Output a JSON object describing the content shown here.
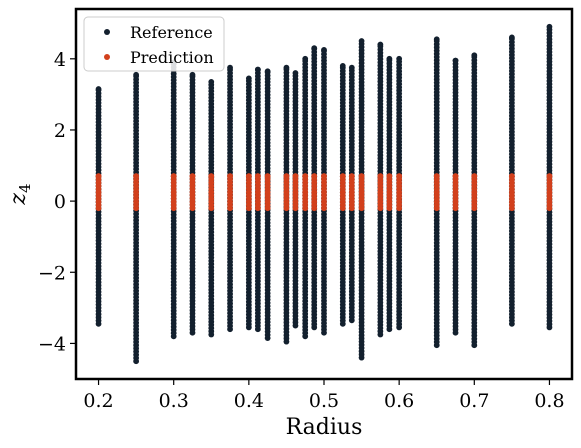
{
  "chart_data": {
    "type": "scatter",
    "title": "",
    "xlabel": "Radius",
    "ylabel_main": "z",
    "ylabel_sub": "4",
    "xlim": [
      0.17,
      0.83
    ],
    "ylim": [
      -5.0,
      5.4
    ],
    "x_ticks": [
      {
        "value": 0.2,
        "label": "0.2"
      },
      {
        "value": 0.3,
        "label": "0.3"
      },
      {
        "value": 0.4,
        "label": "0.4"
      },
      {
        "value": 0.5,
        "label": "0.5"
      },
      {
        "value": 0.6,
        "label": "0.6"
      },
      {
        "value": 0.7,
        "label": "0.7"
      },
      {
        "value": 0.8,
        "label": "0.8"
      }
    ],
    "y_ticks": [
      {
        "value": 4,
        "label": "4"
      },
      {
        "value": 2,
        "label": "2"
      },
      {
        "value": 0,
        "label": "0"
      },
      {
        "value": -2,
        "label": "−2"
      },
      {
        "value": -4,
        "label": "−4"
      }
    ],
    "grid": false,
    "legend_position": "top-left",
    "series": [
      {
        "name": "Reference",
        "color": "#13202e",
        "points": [
          {
            "x": 0.2,
            "ymin": -3.45,
            "ymax": 3.15
          },
          {
            "x": 0.25,
            "ymin": -4.5,
            "ymax": 3.55
          },
          {
            "x": 0.3,
            "ymin": -3.8,
            "ymax": 3.9
          },
          {
            "x": 0.325,
            "ymin": -3.7,
            "ymax": 3.55
          },
          {
            "x": 0.35,
            "ymin": -3.75,
            "ymax": 3.35
          },
          {
            "x": 0.375,
            "ymin": -3.6,
            "ymax": 3.75
          },
          {
            "x": 0.4,
            "ymin": -3.55,
            "ymax": 3.45
          },
          {
            "x": 0.412,
            "ymin": -3.6,
            "ymax": 3.7
          },
          {
            "x": 0.425,
            "ymin": -3.85,
            "ymax": 3.65
          },
          {
            "x": 0.45,
            "ymin": -3.95,
            "ymax": 3.75
          },
          {
            "x": 0.462,
            "ymin": -3.5,
            "ymax": 3.6
          },
          {
            "x": 0.475,
            "ymin": -3.8,
            "ymax": 4.0
          },
          {
            "x": 0.487,
            "ymin": -3.55,
            "ymax": 4.3
          },
          {
            "x": 0.5,
            "ymin": -3.7,
            "ymax": 4.25
          },
          {
            "x": 0.525,
            "ymin": -3.45,
            "ymax": 3.8
          },
          {
            "x": 0.537,
            "ymin": -3.35,
            "ymax": 3.75
          },
          {
            "x": 0.55,
            "ymin": -4.4,
            "ymax": 4.5
          },
          {
            "x": 0.575,
            "ymin": -3.75,
            "ymax": 4.4
          },
          {
            "x": 0.587,
            "ymin": -3.6,
            "ymax": 4.0
          },
          {
            "x": 0.6,
            "ymin": -3.55,
            "ymax": 4.0
          },
          {
            "x": 0.65,
            "ymin": -4.05,
            "ymax": 4.55
          },
          {
            "x": 0.675,
            "ymin": -3.7,
            "ymax": 3.95
          },
          {
            "x": 0.7,
            "ymin": -4.05,
            "ymax": 4.1
          },
          {
            "x": 0.75,
            "ymin": -3.45,
            "ymax": 4.6
          },
          {
            "x": 0.8,
            "ymin": -3.55,
            "ymax": 4.9
          }
        ]
      },
      {
        "name": "Prediction",
        "color": "#d2401c",
        "points": [
          {
            "x": 0.2,
            "ymin": -0.2,
            "ymax": 0.7
          },
          {
            "x": 0.25,
            "ymin": -0.2,
            "ymax": 0.7
          },
          {
            "x": 0.3,
            "ymin": -0.2,
            "ymax": 0.7
          },
          {
            "x": 0.325,
            "ymin": -0.2,
            "ymax": 0.7
          },
          {
            "x": 0.35,
            "ymin": -0.2,
            "ymax": 0.7
          },
          {
            "x": 0.375,
            "ymin": -0.2,
            "ymax": 0.7
          },
          {
            "x": 0.4,
            "ymin": -0.2,
            "ymax": 0.7
          },
          {
            "x": 0.412,
            "ymin": -0.2,
            "ymax": 0.7
          },
          {
            "x": 0.425,
            "ymin": -0.2,
            "ymax": 0.7
          },
          {
            "x": 0.45,
            "ymin": -0.2,
            "ymax": 0.7
          },
          {
            "x": 0.462,
            "ymin": -0.2,
            "ymax": 0.7
          },
          {
            "x": 0.475,
            "ymin": -0.2,
            "ymax": 0.7
          },
          {
            "x": 0.487,
            "ymin": -0.2,
            "ymax": 0.7
          },
          {
            "x": 0.5,
            "ymin": -0.2,
            "ymax": 0.7
          },
          {
            "x": 0.525,
            "ymin": -0.2,
            "ymax": 0.7
          },
          {
            "x": 0.537,
            "ymin": -0.2,
            "ymax": 0.7
          },
          {
            "x": 0.55,
            "ymin": -0.2,
            "ymax": 0.7
          },
          {
            "x": 0.575,
            "ymin": -0.2,
            "ymax": 0.7
          },
          {
            "x": 0.587,
            "ymin": -0.2,
            "ymax": 0.7
          },
          {
            "x": 0.6,
            "ymin": -0.2,
            "ymax": 0.7
          },
          {
            "x": 0.65,
            "ymin": -0.2,
            "ymax": 0.7
          },
          {
            "x": 0.675,
            "ymin": -0.2,
            "ymax": 0.7
          },
          {
            "x": 0.7,
            "ymin": -0.2,
            "ymax": 0.7
          },
          {
            "x": 0.75,
            "ymin": -0.2,
            "ymax": 0.7
          },
          {
            "x": 0.8,
            "ymin": -0.2,
            "ymax": 0.7
          }
        ]
      }
    ]
  }
}
